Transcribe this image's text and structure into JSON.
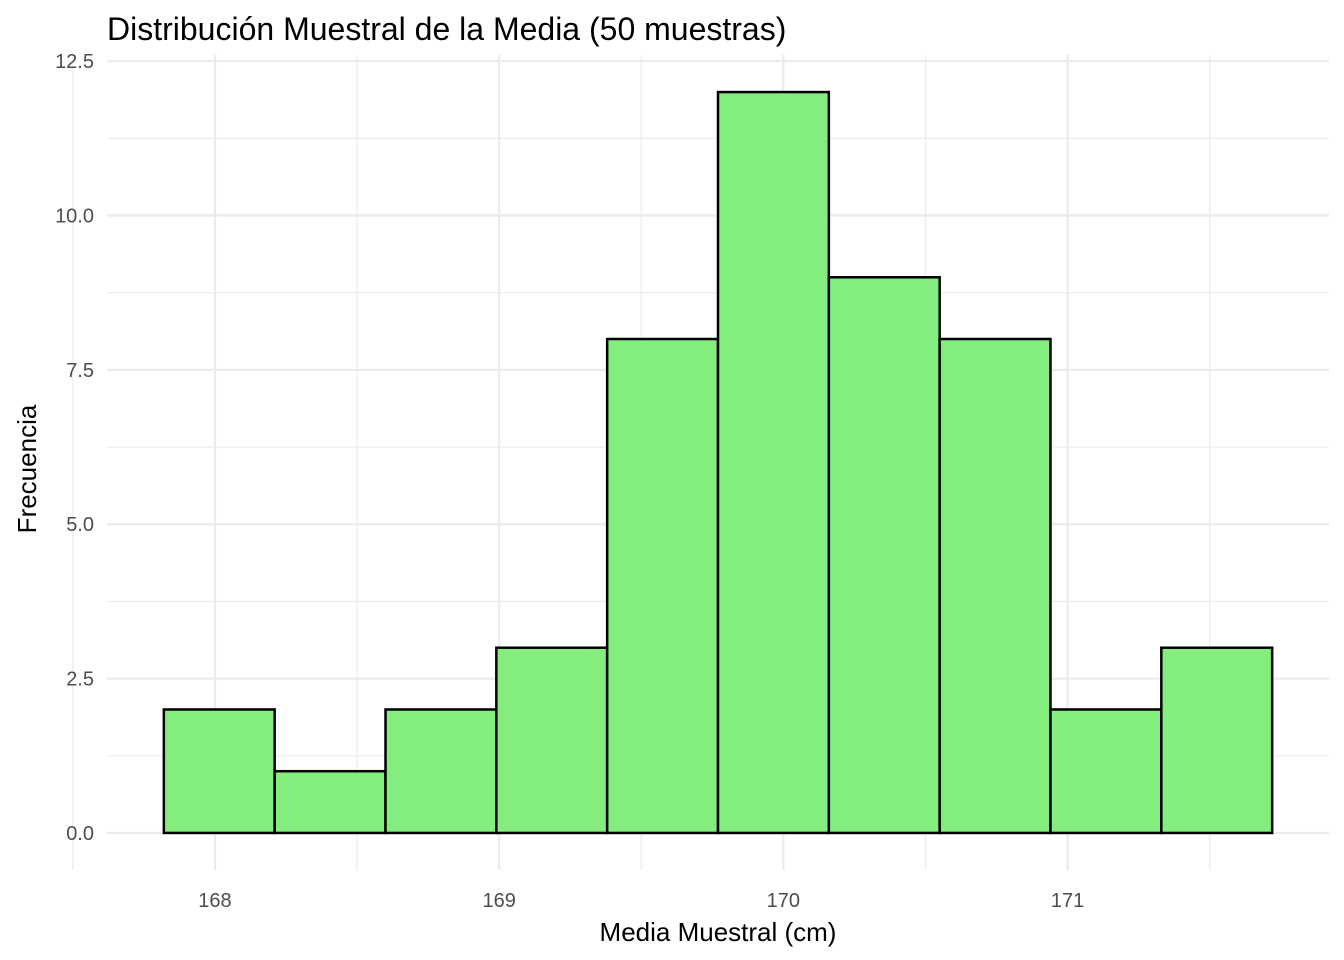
{
  "chart_data": {
    "type": "bar",
    "title": "Distribución Muestral de la Media (50 muestras)",
    "xlabel": "Media Muestral (cm)",
    "ylabel": "Frecuencia",
    "bin_edges": [
      167.82,
      168.21,
      168.6,
      168.99,
      169.38,
      169.77,
      170.16,
      170.55,
      170.94,
      171.33,
      171.72
    ],
    "values": [
      2,
      1,
      2,
      3,
      8,
      12,
      9,
      8,
      2,
      3
    ],
    "xlim": [
      167.62,
      171.92
    ],
    "ylim": [
      -0.6,
      12.6
    ],
    "x_ticks": [
      168,
      169,
      170,
      171
    ],
    "x_tick_labels": [
      "168",
      "169",
      "170",
      "171"
    ],
    "y_ticks": [
      0,
      2.5,
      5,
      7.5,
      10,
      12.5
    ],
    "y_tick_labels": [
      "0.0",
      "2.5",
      "5.0",
      "7.5",
      "10.0",
      "12.5"
    ],
    "bar_fill": "#83ed7d",
    "bar_stroke": "#000000",
    "grid": true
  }
}
